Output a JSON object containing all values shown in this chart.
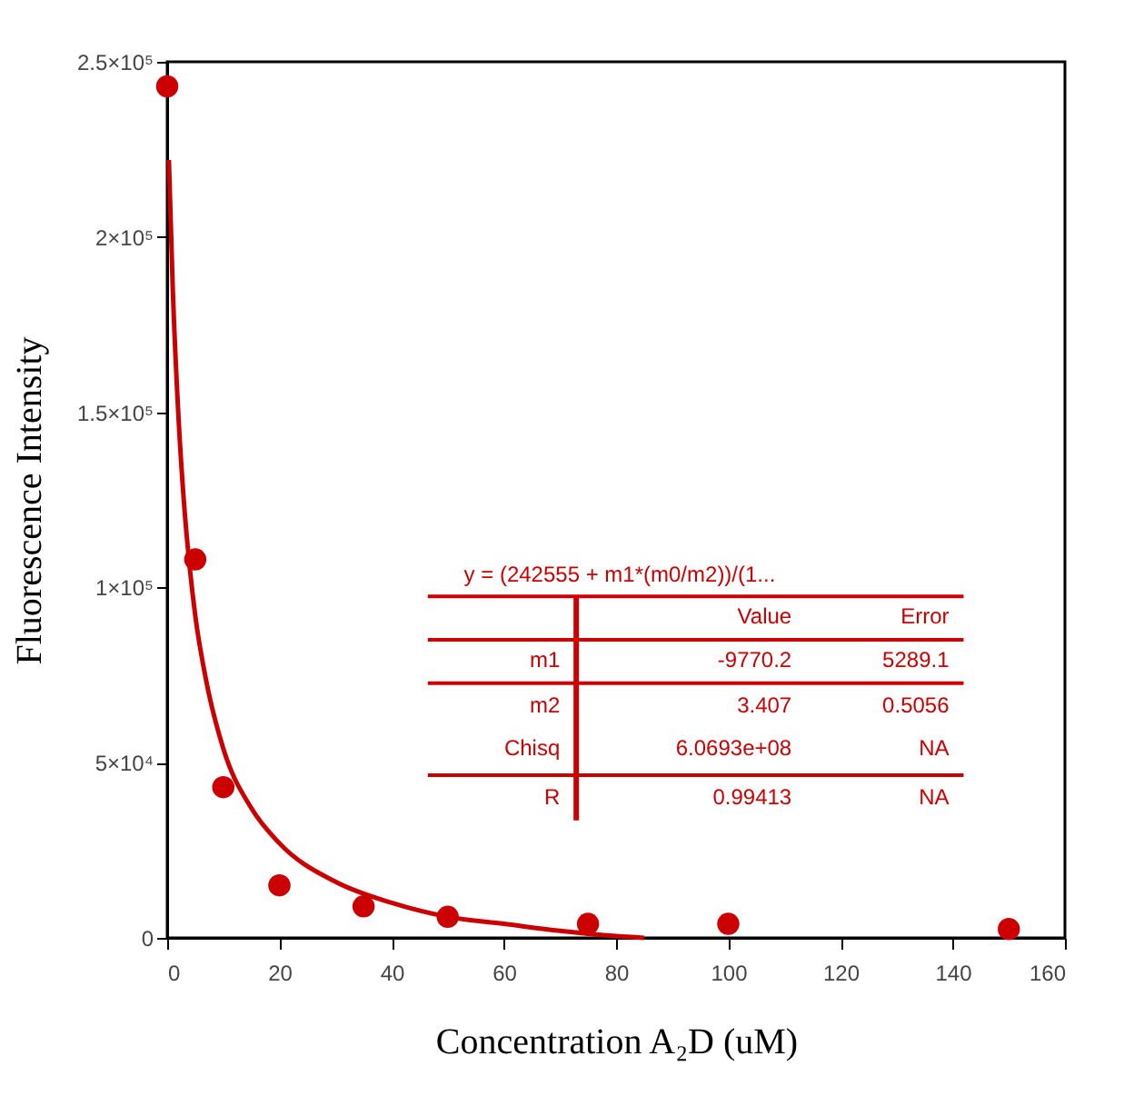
{
  "chart_data": {
    "type": "scatter",
    "xlabel": "Concentration A₂D (uM)",
    "ylabel": "Fluorescence Intensity",
    "xlim": [
      0,
      160
    ],
    "xticks": [
      0,
      20,
      40,
      60,
      80,
      100,
      120,
      140,
      160
    ],
    "ylim": [
      0,
      250000
    ],
    "yticks": [
      {
        "value": 0,
        "label": "0"
      },
      {
        "value": 50000,
        "label": "5×10⁴"
      },
      {
        "value": 100000,
        "label": "1×10⁵"
      },
      {
        "value": 150000,
        "label": "1.5×10⁵"
      },
      {
        "value": 200000,
        "label": "2×10⁵"
      },
      {
        "value": 250000,
        "label": "2.5×10⁵"
      }
    ],
    "series": [
      {
        "type": "scatter",
        "color": "#cc0000",
        "marker": "circle",
        "x": [
          0,
          5,
          10,
          20,
          35,
          50,
          75,
          100,
          150
        ],
        "values": [
          243000,
          108000,
          43000,
          15000,
          9000,
          6000,
          4000,
          4000,
          2500
        ]
      },
      {
        "type": "line",
        "color": "#cc0000",
        "marker": "none",
        "line_style": "solid",
        "x": [
          0.3,
          1,
          2,
          3,
          4,
          5,
          7,
          10,
          15,
          20,
          30,
          40,
          50,
          60,
          70,
          80,
          85
        ],
        "values": [
          222000,
          185000,
          149000,
          124000,
          106000,
          92000,
          73000,
          54000,
          37000,
          27000,
          16000,
          10000,
          6000,
          4000,
          2000,
          500,
          0
        ]
      }
    ],
    "annotations": [
      "y = (242555 + m1*(m0/m2))/(1...",
      "Value",
      "Error",
      "m1",
      "-9770.2",
      "5289.1",
      "m2",
      "3.407",
      "0.5056",
      "Chisq",
      "6.0693e+08",
      "NA",
      "R",
      "0.99413",
      "NA"
    ],
    "grid": false,
    "legend": false
  }
}
